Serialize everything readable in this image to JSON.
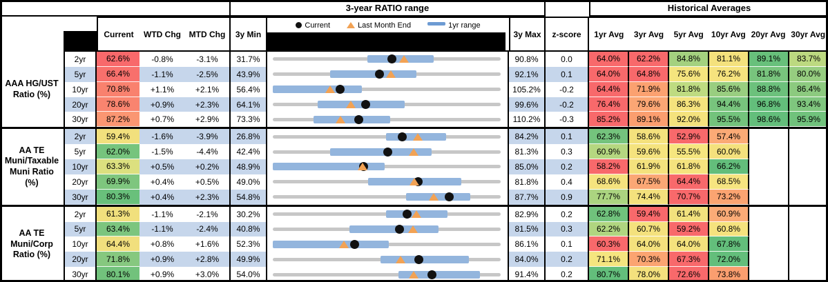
{
  "header": {
    "ratio_range_title": "3-year RATIO range",
    "historical_title": "Historical Averages",
    "col_current": "Current",
    "col_wtd": "WTD Chg",
    "col_mtd": "MTD Chg",
    "col_3y_min": "3y Min",
    "col_3y_max": "3y Max",
    "col_zscore": "z-score",
    "avg_cols": [
      "1yr Avg",
      "3yr Avg",
      "5yr Avg",
      "10yr Avg",
      "20yr Avg",
      "30yr Avg"
    ],
    "legend": {
      "current": "Current",
      "last_month": "Last Month End",
      "range": "1yr range"
    }
  },
  "colors": {
    "stripe_blue": "#c6d6eb",
    "bar_blue": "#93b5dd",
    "legend_bar_blue": "#6d9bd3",
    "track_gray": "#c7c7c7",
    "triangle_orange": "#f2a254",
    "dot_black": "#111111"
  },
  "sections": [
    {
      "label": "AAA HG/UST\nRatio (%)",
      "rows": [
        {
          "tenor": "2yr",
          "current": "62.6%",
          "current_bg": "#f8696b",
          "wtd": "-0.8%",
          "mtd": "-3.1%",
          "min": "31.7%",
          "max": "90.8%",
          "z": "0.0",
          "chart": {
            "min": 31.7,
            "max": 90.8,
            "lo": 56.2,
            "hi": 73.4,
            "cur": 62.6,
            "lme": 65.7
          },
          "avgs": [
            {
              "v": "64.0%",
              "bg": "#f8696b"
            },
            {
              "v": "62.2%",
              "bg": "#f8696b"
            },
            {
              "v": "84.8%",
              "bg": "#a4d17f"
            },
            {
              "v": "81.1%",
              "bg": "#f4e17d"
            },
            {
              "v": "89.1%",
              "bg": "#68c07b"
            },
            {
              "v": "83.7%",
              "bg": "#bcd980"
            }
          ]
        },
        {
          "tenor": "5yr",
          "current": "66.4%",
          "current_bg": "#f8706c",
          "wtd": "-1.1%",
          "mtd": "-2.5%",
          "min": "43.9%",
          "max": "92.1%",
          "z": "0.1",
          "chart": {
            "min": 43.9,
            "max": 92.1,
            "lo": 56.0,
            "hi": 74.3,
            "cur": 66.4,
            "lme": 68.9
          },
          "avgs": [
            {
              "v": "64.0%",
              "bg": "#f8696b"
            },
            {
              "v": "64.8%",
              "bg": "#f8696b"
            },
            {
              "v": "75.6%",
              "bg": "#f5e47e"
            },
            {
              "v": "76.2%",
              "bg": "#f6e37e"
            },
            {
              "v": "81.8%",
              "bg": "#78c47d"
            },
            {
              "v": "80.0%",
              "bg": "#96cd80"
            }
          ]
        },
        {
          "tenor": "10yr",
          "current": "70.8%",
          "current_bg": "#f9816e",
          "wtd": "+1.1%",
          "mtd": "+2.1%",
          "min": "56.4%",
          "max": "105.2%",
          "z": "-0.2",
          "chart": {
            "min": 56.4,
            "max": 105.2,
            "lo": 56.4,
            "hi": 75.5,
            "cur": 70.8,
            "lme": 68.7
          },
          "avgs": [
            {
              "v": "64.4%",
              "bg": "#f8696b"
            },
            {
              "v": "71.9%",
              "bg": "#fba170"
            },
            {
              "v": "81.8%",
              "bg": "#bedb81"
            },
            {
              "v": "85.6%",
              "bg": "#99ce80"
            },
            {
              "v": "88.8%",
              "bg": "#6cc17c"
            },
            {
              "v": "86.4%",
              "bg": "#8cca7f"
            }
          ]
        },
        {
          "tenor": "20yr",
          "current": "78.6%",
          "current_bg": "#f9846f",
          "wtd": "+0.9%",
          "mtd": "+2.3%",
          "min": "64.1%",
          "max": "99.6%",
          "z": "-0.2",
          "chart": {
            "min": 64.1,
            "max": 99.6,
            "lo": 71.1,
            "hi": 84.7,
            "cur": 78.6,
            "lme": 76.3
          },
          "avgs": [
            {
              "v": "76.4%",
              "bg": "#f8696b"
            },
            {
              "v": "79.6%",
              "bg": "#fba674"
            },
            {
              "v": "86.3%",
              "bg": "#f5e37d"
            },
            {
              "v": "94.4%",
              "bg": "#78c47d"
            },
            {
              "v": "96.8%",
              "bg": "#63be7b"
            },
            {
              "v": "93.4%",
              "bg": "#7fc67e"
            }
          ]
        },
        {
          "tenor": "30yr",
          "current": "87.2%",
          "current_bg": "#fa9672",
          "wtd": "+0.7%",
          "mtd": "+2.9%",
          "min": "73.3%",
          "max": "110.2%",
          "z": "-0.3",
          "chart": {
            "min": 73.3,
            "max": 110.2,
            "lo": 79.9,
            "hi": 92.3,
            "cur": 87.2,
            "lme": 84.3
          },
          "avgs": [
            {
              "v": "85.2%",
              "bg": "#f8696b"
            },
            {
              "v": "89.1%",
              "bg": "#fb9e6f"
            },
            {
              "v": "92.0%",
              "bg": "#f4e27d"
            },
            {
              "v": "95.5%",
              "bg": "#73c37c"
            },
            {
              "v": "98.6%",
              "bg": "#63be7b"
            },
            {
              "v": "95.9%",
              "bg": "#70c27c"
            }
          ]
        }
      ]
    },
    {
      "label": "AA TE\nMuni/Taxable\nMuni Ratio\n(%)",
      "rows": [
        {
          "tenor": "2yr",
          "current": "59.4%",
          "current_bg": "#f2e07d",
          "wtd": "-1.6%",
          "mtd": "-3.9%",
          "min": "26.8%",
          "max": "84.2%",
          "z": "0.1",
          "chart": {
            "min": 26.8,
            "max": 84.2,
            "lo": 55.3,
            "hi": 70.4,
            "cur": 59.4,
            "lme": 63.3
          },
          "avgs": [
            {
              "v": "62.3%",
              "bg": "#74c37d"
            },
            {
              "v": "58.6%",
              "bg": "#f4e17d"
            },
            {
              "v": "52.9%",
              "bg": "#f8696b"
            },
            {
              "v": "57.4%",
              "bg": "#fbaa76"
            },
            {
              "v": "",
              "bg": null
            },
            {
              "v": "",
              "bg": null
            }
          ]
        },
        {
          "tenor": "5yr",
          "current": "62.0%",
          "current_bg": "#76c47d",
          "wtd": "-1.5%",
          "mtd": "-4.4%",
          "min": "42.4%",
          "max": "81.3%",
          "z": "0.3",
          "chart": {
            "min": 42.4,
            "max": 81.3,
            "lo": 52.2,
            "hi": 69.5,
            "cur": 62.0,
            "lme": 66.4
          },
          "avgs": [
            {
              "v": "60.9%",
              "bg": "#b5d780"
            },
            {
              "v": "59.6%",
              "bg": "#f5e37e"
            },
            {
              "v": "55.5%",
              "bg": "#f6e67f"
            },
            {
              "v": "60.0%",
              "bg": "#f4e17d"
            },
            {
              "v": "",
              "bg": null
            },
            {
              "v": "",
              "bg": null
            }
          ]
        },
        {
          "tenor": "10yr",
          "current": "63.3%",
          "current_bg": "#dce07f",
          "wtd": "+0.5%",
          "mtd": "+0.2%",
          "min": "48.9%",
          "max": "85.0%",
          "z": "0.2",
          "chart": {
            "min": 48.9,
            "max": 85.0,
            "lo": 48.9,
            "hi": 66.6,
            "cur": 63.3,
            "lme": 63.1
          },
          "avgs": [
            {
              "v": "58.2%",
              "bg": "#f8696b"
            },
            {
              "v": "61.9%",
              "bg": "#f4e27d"
            },
            {
              "v": "61.8%",
              "bg": "#f5e37e"
            },
            {
              "v": "66.2%",
              "bg": "#63be7b"
            },
            {
              "v": "",
              "bg": null
            },
            {
              "v": "",
              "bg": null
            }
          ]
        },
        {
          "tenor": "20yr",
          "current": "69.9%",
          "current_bg": "#7ec67e",
          "wtd": "+0.4%",
          "mtd": "+0.5%",
          "min": "49.0%",
          "max": "81.8%",
          "z": "0.4",
          "chart": {
            "min": 49.0,
            "max": 81.8,
            "lo": 62.7,
            "hi": 76.1,
            "cur": 69.9,
            "lme": 69.4
          },
          "avgs": [
            {
              "v": "68.6%",
              "bg": "#f5e37e"
            },
            {
              "v": "67.5%",
              "bg": "#fba775"
            },
            {
              "v": "64.4%",
              "bg": "#f8696b"
            },
            {
              "v": "68.5%",
              "bg": "#f6e480"
            },
            {
              "v": "",
              "bg": null
            },
            {
              "v": "",
              "bg": null
            }
          ]
        },
        {
          "tenor": "30yr",
          "current": "80.3%",
          "current_bg": "#69c07b",
          "wtd": "+0.4%",
          "mtd": "+2.3%",
          "min": "54.8%",
          "max": "87.7%",
          "z": "0.9",
          "chart": {
            "min": 54.8,
            "max": 87.7,
            "lo": 74.0,
            "hi": 83.3,
            "cur": 80.3,
            "lme": 78.0
          },
          "avgs": [
            {
              "v": "77.7%",
              "bg": "#abd480"
            },
            {
              "v": "74.4%",
              "bg": "#f4e17d"
            },
            {
              "v": "70.7%",
              "bg": "#f8696b"
            },
            {
              "v": "73.2%",
              "bg": "#fba471"
            },
            {
              "v": "",
              "bg": null
            },
            {
              "v": "",
              "bg": null
            }
          ]
        }
      ]
    },
    {
      "label": "AA TE\nMuni/Corp\nRatio (%)",
      "rows": [
        {
          "tenor": "2yr",
          "current": "61.3%",
          "current_bg": "#f1e07d",
          "wtd": "-1.1%",
          "mtd": "-2.1%",
          "min": "30.2%",
          "max": "82.9%",
          "z": "0.2",
          "chart": {
            "min": 30.2,
            "max": 82.9,
            "lo": 56.4,
            "hi": 70.6,
            "cur": 61.3,
            "lme": 63.4
          },
          "avgs": [
            {
              "v": "62.8%",
              "bg": "#70c27c"
            },
            {
              "v": "59.4%",
              "bg": "#f8696b"
            },
            {
              "v": "61.4%",
              "bg": "#f2e27d"
            },
            {
              "v": "60.9%",
              "bg": "#fbab77"
            },
            {
              "v": "",
              "bg": null
            },
            {
              "v": "",
              "bg": null
            }
          ]
        },
        {
          "tenor": "5yr",
          "current": "63.4%",
          "current_bg": "#7cc57e",
          "wtd": "-1.1%",
          "mtd": "-2.4%",
          "min": "40.8%",
          "max": "81.5%",
          "z": "0.3",
          "chart": {
            "min": 40.8,
            "max": 81.5,
            "lo": 54.5,
            "hi": 70.4,
            "cur": 63.4,
            "lme": 65.8
          },
          "avgs": [
            {
              "v": "62.2%",
              "bg": "#b0d580"
            },
            {
              "v": "60.7%",
              "bg": "#f4e17d"
            },
            {
              "v": "59.2%",
              "bg": "#f8696b"
            },
            {
              "v": "60.8%",
              "bg": "#f5e27e"
            },
            {
              "v": "",
              "bg": null
            },
            {
              "v": "",
              "bg": null
            }
          ]
        },
        {
          "tenor": "10yr",
          "current": "64.4%",
          "current_bg": "#f1df7d",
          "wtd": "+0.8%",
          "mtd": "+1.6%",
          "min": "52.3%",
          "max": "86.1%",
          "z": "0.1",
          "chart": {
            "min": 52.3,
            "max": 86.1,
            "lo": 52.3,
            "hi": 69.5,
            "cur": 64.4,
            "lme": 62.8
          },
          "avgs": [
            {
              "v": "60.3%",
              "bg": "#f8696b"
            },
            {
              "v": "64.0%",
              "bg": "#f4e17d"
            },
            {
              "v": "64.0%",
              "bg": "#f4e27d"
            },
            {
              "v": "67.8%",
              "bg": "#63be7b"
            },
            {
              "v": "",
              "bg": null
            },
            {
              "v": "",
              "bg": null
            }
          ]
        },
        {
          "tenor": "20yr",
          "current": "71.8%",
          "current_bg": "#86c87f",
          "wtd": "+0.9%",
          "mtd": "+2.8%",
          "min": "49.9%",
          "max": "84.0%",
          "z": "0.2",
          "chart": {
            "min": 49.9,
            "max": 84.0,
            "lo": 66.0,
            "hi": 79.2,
            "cur": 71.8,
            "lme": 69.0
          },
          "avgs": [
            {
              "v": "71.1%",
              "bg": "#f5e57f"
            },
            {
              "v": "70.3%",
              "bg": "#fba471"
            },
            {
              "v": "67.3%",
              "bg": "#f8696b"
            },
            {
              "v": "72.0%",
              "bg": "#63be7b"
            },
            {
              "v": "",
              "bg": null
            },
            {
              "v": "",
              "bg": null
            }
          ]
        },
        {
          "tenor": "30yr",
          "current": "80.1%",
          "current_bg": "#72c27c",
          "wtd": "+0.9%",
          "mtd": "+3.0%",
          "min": "54.0%",
          "max": "91.4%",
          "z": "0.2",
          "chart": {
            "min": 54.0,
            "max": 91.4,
            "lo": 74.6,
            "hi": 88.0,
            "cur": 80.1,
            "lme": 77.1
          },
          "avgs": [
            {
              "v": "80.7%",
              "bg": "#63be7b"
            },
            {
              "v": "78.0%",
              "bg": "#f4e17d"
            },
            {
              "v": "72.6%",
              "bg": "#f8696b"
            },
            {
              "v": "73.8%",
              "bg": "#fb9e6f"
            },
            {
              "v": "",
              "bg": null
            },
            {
              "v": "",
              "bg": null
            }
          ]
        }
      ]
    }
  ],
  "chart_data": {
    "type": "scatter",
    "title": "3-year RATIO range",
    "legend": [
      "Current",
      "Last Month End",
      "1yr range"
    ],
    "note": "Dot/range plot per row; each track spans 3y Min to 3y Max, blue bar = 1yr range, dot = Current, triangle = Last Month End.",
    "rows": [
      {
        "group": "AAA HG/UST",
        "tenor": "2yr",
        "min_3y": 31.7,
        "max_3y": 90.8,
        "range_1yr": [
          56.2,
          73.4
        ],
        "current": 62.6,
        "last_month_end": 65.7,
        "z": 0.0
      },
      {
        "group": "AAA HG/UST",
        "tenor": "5yr",
        "min_3y": 43.9,
        "max_3y": 92.1,
        "range_1yr": [
          56.0,
          74.3
        ],
        "current": 66.4,
        "last_month_end": 68.9,
        "z": 0.1
      },
      {
        "group": "AAA HG/UST",
        "tenor": "10yr",
        "min_3y": 56.4,
        "max_3y": 105.2,
        "range_1yr": [
          56.4,
          75.5
        ],
        "current": 70.8,
        "last_month_end": 68.7,
        "z": -0.2
      },
      {
        "group": "AAA HG/UST",
        "tenor": "20yr",
        "min_3y": 64.1,
        "max_3y": 99.6,
        "range_1yr": [
          71.1,
          84.7
        ],
        "current": 78.6,
        "last_month_end": 76.3,
        "z": -0.2
      },
      {
        "group": "AAA HG/UST",
        "tenor": "30yr",
        "min_3y": 73.3,
        "max_3y": 110.2,
        "range_1yr": [
          79.9,
          92.3
        ],
        "current": 87.2,
        "last_month_end": 84.3,
        "z": -0.3
      },
      {
        "group": "AA TE Muni/Taxable Muni",
        "tenor": "2yr",
        "min_3y": 26.8,
        "max_3y": 84.2,
        "range_1yr": [
          55.3,
          70.4
        ],
        "current": 59.4,
        "last_month_end": 63.3,
        "z": 0.1
      },
      {
        "group": "AA TE Muni/Taxable Muni",
        "tenor": "5yr",
        "min_3y": 42.4,
        "max_3y": 81.3,
        "range_1yr": [
          52.2,
          69.5
        ],
        "current": 62.0,
        "last_month_end": 66.4,
        "z": 0.3
      },
      {
        "group": "AA TE Muni/Taxable Muni",
        "tenor": "10yr",
        "min_3y": 48.9,
        "max_3y": 85.0,
        "range_1yr": [
          48.9,
          66.6
        ],
        "current": 63.3,
        "last_month_end": 63.1,
        "z": 0.2
      },
      {
        "group": "AA TE Muni/Taxable Muni",
        "tenor": "20yr",
        "min_3y": 49.0,
        "max_3y": 81.8,
        "range_1yr": [
          62.7,
          76.1
        ],
        "current": 69.9,
        "last_month_end": 69.4,
        "z": 0.4
      },
      {
        "group": "AA TE Muni/Taxable Muni",
        "tenor": "30yr",
        "min_3y": 54.8,
        "max_3y": 87.7,
        "range_1yr": [
          74.0,
          83.3
        ],
        "current": 80.3,
        "last_month_end": 78.0,
        "z": 0.9
      },
      {
        "group": "AA TE Muni/Corp",
        "tenor": "2yr",
        "min_3y": 30.2,
        "max_3y": 82.9,
        "range_1yr": [
          56.4,
          70.6
        ],
        "current": 61.3,
        "last_month_end": 63.4,
        "z": 0.2
      },
      {
        "group": "AA TE Muni/Corp",
        "tenor": "5yr",
        "min_3y": 40.8,
        "max_3y": 81.5,
        "range_1yr": [
          54.5,
          70.4
        ],
        "current": 63.4,
        "last_month_end": 65.8,
        "z": 0.3
      },
      {
        "group": "AA TE Muni/Corp",
        "tenor": "10yr",
        "min_3y": 52.3,
        "max_3y": 86.1,
        "range_1yr": [
          52.3,
          69.5
        ],
        "current": 64.4,
        "last_month_end": 62.8,
        "z": 0.1
      },
      {
        "group": "AA TE Muni/Corp",
        "tenor": "20yr",
        "min_3y": 49.9,
        "max_3y": 84.0,
        "range_1yr": [
          66.0,
          79.2
        ],
        "current": 71.8,
        "last_month_end": 69.0,
        "z": 0.2
      },
      {
        "group": "AA TE Muni/Corp",
        "tenor": "30yr",
        "min_3y": 54.0,
        "max_3y": 91.4,
        "range_1yr": [
          74.6,
          88.0
        ],
        "current": 80.1,
        "last_month_end": 77.1,
        "z": 0.2
      }
    ]
  }
}
